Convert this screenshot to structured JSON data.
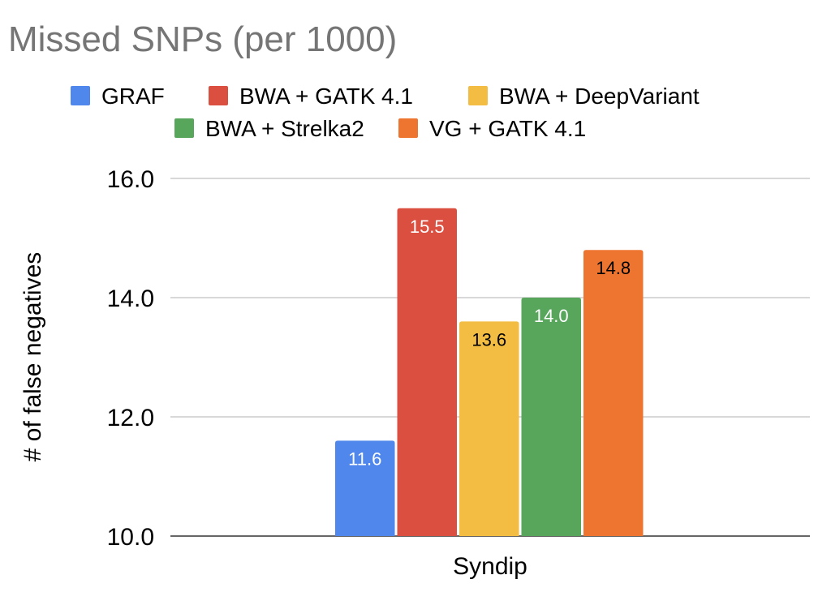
{
  "chart_data": {
    "type": "bar",
    "title": "Missed SNPs (per 1000)",
    "xlabel": "",
    "ylabel": "# of false negatives",
    "categories": [
      "Syndip"
    ],
    "ylim": [
      10,
      16
    ],
    "yticks": [
      "10.0",
      "12.0",
      "14.0",
      "16.0"
    ],
    "grid": true,
    "legend_position": "top",
    "series": [
      {
        "name": "GRAF",
        "values": [
          11.6
        ],
        "label": "11.6",
        "color": "#5087EC",
        "label_color": "#FFFFFF"
      },
      {
        "name": "BWA + GATK 4.1",
        "values": [
          15.5
        ],
        "label": "15.5",
        "color": "#DB4F40",
        "label_color": "#FFFFFF"
      },
      {
        "name": "BWA + DeepVariant",
        "values": [
          13.6
        ],
        "label": "13.6",
        "color": "#F2BD42",
        "label_color": "#000000"
      },
      {
        "name": "BWA + Strelka2",
        "values": [
          14.0
        ],
        "label": "14.0",
        "color": "#58A65C",
        "label_color": "#FFFFFF"
      },
      {
        "name": "VG + GATK 4.1",
        "values": [
          14.8
        ],
        "label": "14.8",
        "color": "#EE7530",
        "label_color": "#000000"
      }
    ]
  }
}
